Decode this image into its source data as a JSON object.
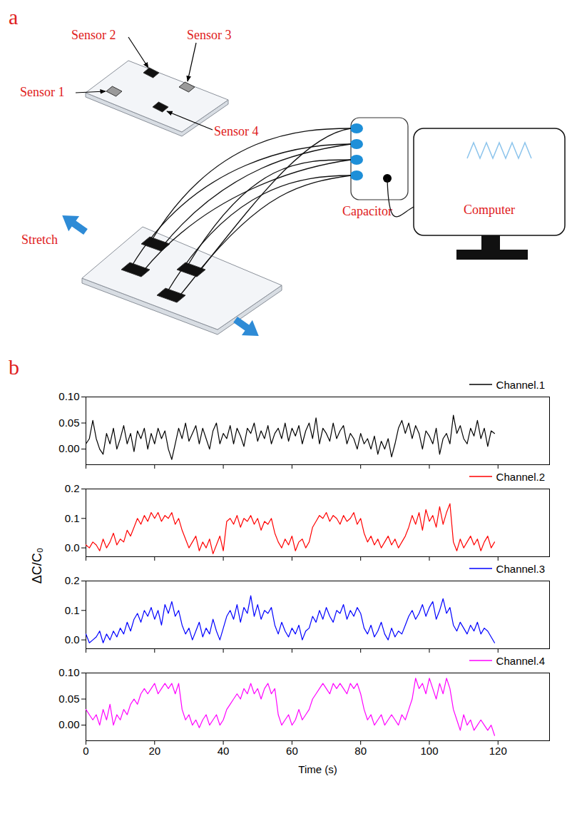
{
  "diagram": {
    "panel_label": "a",
    "sensor_labels": [
      "Sensor 1",
      "Sensor 2",
      "Sensor 3",
      "Sensor 4"
    ],
    "stretch_label": "Stretch",
    "capacitor_label": "Capacitor",
    "computer_label": "Computer"
  },
  "chart_data": {
    "type": "line",
    "panel_label": "b",
    "xlabel": "Time (s)",
    "ylabel": "ΔC/C₀",
    "xlim": [
      0,
      135
    ],
    "xticks": [
      0,
      20,
      40,
      60,
      80,
      100,
      120
    ],
    "legend": "top-right",
    "x": [
      0,
      1,
      2,
      3,
      4,
      5,
      6,
      7,
      8,
      9,
      10,
      11,
      12,
      13,
      14,
      15,
      16,
      17,
      18,
      19,
      20,
      21,
      22,
      23,
      24,
      25,
      26,
      27,
      28,
      29,
      30,
      31,
      32,
      33,
      34,
      35,
      36,
      37,
      38,
      39,
      40,
      41,
      42,
      43,
      44,
      45,
      46,
      47,
      48,
      49,
      50,
      51,
      52,
      53,
      54,
      55,
      56,
      57,
      58,
      59,
      60,
      61,
      62,
      63,
      64,
      65,
      66,
      67,
      68,
      69,
      70,
      71,
      72,
      73,
      74,
      75,
      76,
      77,
      78,
      79,
      80,
      81,
      82,
      83,
      84,
      85,
      86,
      87,
      88,
      89,
      90,
      91,
      92,
      93,
      94,
      95,
      96,
      97,
      98,
      99,
      100,
      101,
      102,
      103,
      104,
      105,
      106,
      107,
      108,
      109,
      110,
      111,
      112,
      113,
      114,
      115,
      116,
      117,
      118,
      119
    ],
    "panels": [
      {
        "ylim": [
          -0.03,
          0.1
        ],
        "yticks": [
          {
            "value": 0,
            "label": "0.00"
          },
          {
            "value": 0.05,
            "label": "0.05"
          },
          {
            "value": 0.1,
            "label": "0.10"
          }
        ],
        "series": [
          {
            "name": "Channel.1",
            "color": "#000000",
            "values": [
              0.01,
              0.02,
              0.055,
              0.02,
              0.0,
              -0.01,
              0.03,
              0.01,
              0.04,
              0.0,
              0.02,
              0.045,
              0.01,
              0.03,
              -0.005,
              0.035,
              0.02,
              0.04,
              0.0,
              0.03,
              0.01,
              0.04,
              0.02,
              0.035,
              0.0,
              -0.02,
              0.01,
              0.04,
              0.02,
              0.05,
              0.015,
              0.03,
              0.045,
              0.01,
              0.04,
              0.02,
              0.0,
              0.035,
              0.05,
              0.01,
              0.03,
              0.02,
              0.045,
              0.01,
              0.04,
              0.025,
              0.005,
              0.04,
              0.03,
              0.05,
              0.015,
              0.035,
              0.02,
              0.045,
              0.01,
              0.03,
              0.04,
              0.02,
              0.05,
              0.015,
              0.04,
              0.025,
              0.045,
              0.01,
              0.035,
              0.05,
              0.02,
              0.06,
              0.01,
              0.04,
              0.03,
              0.015,
              0.05,
              0.02,
              0.035,
              0.045,
              0.01,
              0.03,
              0.02,
              0.0,
              0.03,
              0.01,
              0.02,
              0.0,
              0.025,
              -0.01,
              0.015,
              0.0,
              0.02,
              -0.015,
              0.01,
              0.04,
              0.055,
              0.03,
              0.05,
              0.02,
              0.045,
              0.03,
              0.0,
              0.035,
              0.025,
              0.01,
              0.04,
              -0.01,
              0.02,
              0.03,
              0.01,
              0.065,
              0.03,
              0.045,
              0.02,
              0.01,
              0.04,
              0.025,
              0.055,
              0.02,
              0.04,
              0.005,
              0.035,
              0.03
            ]
          }
        ]
      },
      {
        "ylim": [
          -0.03,
          0.2
        ],
        "yticks": [
          {
            "value": 0,
            "label": "0.0"
          },
          0.1,
          0.2
        ],
        "series": [
          {
            "name": "Channel.2",
            "color": "#ff0000",
            "values": [
              0.01,
              0.0,
              0.02,
              0.01,
              -0.01,
              0.03,
              0.0,
              0.02,
              0.05,
              0.01,
              0.03,
              0.02,
              0.06,
              0.04,
              0.07,
              0.1,
              0.08,
              0.11,
              0.09,
              0.12,
              0.1,
              0.12,
              0.09,
              0.11,
              0.1,
              0.12,
              0.08,
              0.1,
              0.06,
              0.03,
              0.0,
              0.02,
              0.04,
              -0.01,
              0.02,
              0.0,
              0.03,
              -0.02,
              0.01,
              0.04,
              -0.01,
              0.09,
              0.1,
              0.08,
              0.11,
              0.07,
              0.1,
              0.09,
              0.11,
              0.08,
              0.1,
              0.06,
              0.09,
              0.08,
              0.1,
              0.05,
              0.02,
              0.0,
              0.03,
              0.01,
              0.04,
              -0.01,
              0.02,
              0.03,
              0.0,
              0.02,
              0.07,
              0.09,
              0.11,
              0.1,
              0.12,
              0.09,
              0.11,
              0.1,
              0.08,
              0.11,
              0.09,
              0.1,
              0.12,
              0.08,
              0.1,
              0.05,
              0.02,
              0.04,
              0.01,
              0.03,
              0.0,
              0.02,
              0.04,
              0.01,
              0.03,
              0.0,
              0.02,
              0.04,
              0.07,
              0.11,
              0.08,
              0.12,
              0.06,
              0.13,
              0.09,
              0.11,
              0.07,
              0.14,
              0.08,
              0.12,
              0.15,
              0.02,
              -0.01,
              0.03,
              0.0,
              0.02,
              0.04,
              0.01,
              0.03,
              -0.01,
              0.02,
              0.04,
              0.0,
              0.02
            ]
          }
        ]
      },
      {
        "ylim": [
          -0.03,
          0.2
        ],
        "yticks": [
          {
            "value": 0,
            "label": "0.0"
          },
          0.1,
          0.2
        ],
        "series": [
          {
            "name": "Channel.3",
            "color": "#0000ff",
            "values": [
              0.02,
              -0.01,
              0.0,
              0.01,
              0.03,
              -0.01,
              0.02,
              0.0,
              0.03,
              0.01,
              0.04,
              0.02,
              0.06,
              0.03,
              0.07,
              0.09,
              0.06,
              0.1,
              0.08,
              0.11,
              0.07,
              0.1,
              0.05,
              0.12,
              0.09,
              0.13,
              0.08,
              0.1,
              0.05,
              0.02,
              0.04,
              0.0,
              0.03,
              0.06,
              0.01,
              0.04,
              0.02,
              0.07,
              0.03,
              0.0,
              0.04,
              0.08,
              0.1,
              0.07,
              0.12,
              0.06,
              0.11,
              0.09,
              0.15,
              0.08,
              0.12,
              0.07,
              0.1,
              0.09,
              0.11,
              0.05,
              0.02,
              0.06,
              0.03,
              0.01,
              0.04,
              0.02,
              0.05,
              0.0,
              0.03,
              0.04,
              0.08,
              0.06,
              0.1,
              0.07,
              0.11,
              0.08,
              0.06,
              0.1,
              0.09,
              0.12,
              0.07,
              0.1,
              0.08,
              0.11,
              0.09,
              0.04,
              0.02,
              0.05,
              0.01,
              0.03,
              0.06,
              0.02,
              0.0,
              0.04,
              0.01,
              0.03,
              0.02,
              0.05,
              0.08,
              0.1,
              0.07,
              0.09,
              0.12,
              0.08,
              0.11,
              0.13,
              0.07,
              0.1,
              0.14,
              0.09,
              0.11,
              0.05,
              0.03,
              0.06,
              0.04,
              0.02,
              0.05,
              0.03,
              0.06,
              0.02,
              0.04,
              0.03,
              0.01,
              -0.01
            ]
          }
        ]
      },
      {
        "ylim": [
          -0.03,
          0.1
        ],
        "yticks": [
          {
            "value": 0,
            "label": "0.00"
          },
          {
            "value": 0.05,
            "label": "0.05"
          },
          {
            "value": 0.1,
            "label": "0.10"
          }
        ],
        "series": [
          {
            "name": "Channel.4",
            "color": "#ff00ff",
            "values": [
              0.03,
              0.02,
              0.01,
              0.02,
              0.0,
              0.03,
              0.01,
              0.04,
              0.0,
              0.02,
              0.01,
              0.03,
              0.02,
              0.04,
              0.05,
              0.04,
              0.06,
              0.07,
              0.06,
              0.07,
              0.08,
              0.06,
              0.07,
              0.08,
              0.07,
              0.08,
              0.06,
              0.08,
              0.03,
              0.01,
              0.02,
              0.0,
              0.01,
              -0.005,
              0.01,
              0.02,
              0.0,
              0.01,
              0.02,
              0.0,
              0.01,
              0.03,
              0.04,
              0.05,
              0.06,
              0.05,
              0.07,
              0.06,
              0.08,
              0.06,
              0.07,
              0.05,
              0.07,
              0.08,
              0.06,
              0.07,
              0.02,
              0.0,
              0.01,
              0.02,
              0.0,
              0.01,
              0.03,
              0.01,
              0.02,
              0.03,
              0.05,
              0.06,
              0.07,
              0.08,
              0.07,
              0.06,
              0.08,
              0.07,
              0.08,
              0.07,
              0.06,
              0.08,
              0.07,
              0.08,
              0.06,
              0.03,
              0.01,
              0.02,
              0.0,
              0.01,
              0.02,
              0.0,
              0.01,
              0.02,
              0.01,
              0.0,
              0.02,
              0.01,
              0.03,
              0.05,
              0.09,
              0.07,
              0.08,
              0.06,
              0.09,
              0.07,
              0.05,
              0.08,
              0.06,
              0.09,
              0.07,
              0.03,
              0.01,
              -0.01,
              0.02,
              0.0,
              0.01,
              -0.01,
              0.0,
              0.01,
              0.0,
              -0.01,
              0.0,
              -0.02
            ]
          }
        ]
      }
    ]
  }
}
